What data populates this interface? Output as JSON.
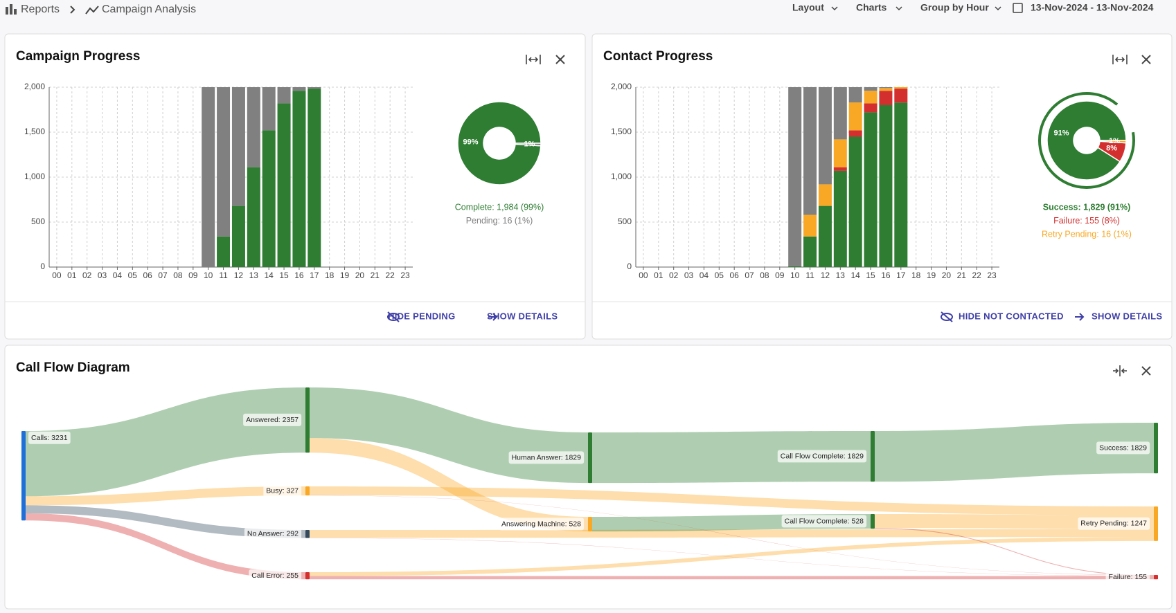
{
  "header": {
    "breadcrumb": [
      "Reports",
      "Campaign Analysis"
    ],
    "toolbar": [
      "Layout",
      "Charts",
      "Group by Hour",
      "13-Nov-2024 - 13-Nov-2024"
    ]
  },
  "chart_data": [
    {
      "type": "bar",
      "stacked": true,
      "title": "Campaign Progress",
      "categories": [
        "00",
        "01",
        "02",
        "03",
        "04",
        "05",
        "06",
        "07",
        "08",
        "09",
        "10",
        "11",
        "12",
        "13",
        "14",
        "15",
        "16",
        "17",
        "18",
        "19",
        "20",
        "21",
        "22",
        "23"
      ],
      "series": [
        {
          "color": "#2e7d32",
          "values": [
            null,
            null,
            null,
            null,
            null,
            null,
            null,
            null,
            null,
            null,
            0,
            340,
            680,
            1110,
            1520,
            1820,
            1960,
            1984,
            null,
            null,
            null,
            null,
            null,
            null
          ]
        },
        {
          "color": "#808080",
          "values": [
            null,
            null,
            null,
            null,
            null,
            null,
            null,
            null,
            null,
            null,
            2000,
            1660,
            1320,
            890,
            480,
            180,
            40,
            16,
            null,
            null,
            null,
            null,
            null,
            null
          ]
        }
      ],
      "ylim": [
        0,
        2000
      ],
      "yticks": [
        0,
        500,
        {
          "value": 1000,
          "label": "1,000"
        },
        {
          "value": 1500,
          "label": "1,500"
        },
        {
          "value": 2000,
          "label": "2,000"
        }
      ],
      "grid": true,
      "donut": {
        "type": "pie",
        "values": [
          99,
          1
        ],
        "value_labels": [
          "99%",
          "1%"
        ],
        "colors": [
          "#2e7d32",
          "#808080"
        ],
        "legend": [
          "Complete: 1,984 (99%)",
          "Pending: 16 (1%)"
        ]
      },
      "buttons": [
        "HIDE PENDING",
        "SHOW DETAILS"
      ]
    },
    {
      "type": "bar",
      "stacked": true,
      "title": "Contact Progress",
      "categories": [
        "00",
        "01",
        "02",
        "03",
        "04",
        "05",
        "06",
        "07",
        "08",
        "09",
        "10",
        "11",
        "12",
        "13",
        "14",
        "15",
        "16",
        "17",
        "18",
        "19",
        "20",
        "21",
        "22",
        "23"
      ],
      "series": [
        {
          "color": "#2e7d32",
          "values": [
            null,
            null,
            null,
            null,
            null,
            null,
            null,
            null,
            null,
            null,
            10,
            340,
            680,
            1070,
            1450,
            1720,
            1800,
            1829,
            null,
            null,
            null,
            null,
            null,
            null
          ]
        },
        {
          "color": "#d32f2f",
          "values": [
            null,
            null,
            null,
            null,
            null,
            null,
            null,
            null,
            null,
            null,
            0,
            0,
            0,
            40,
            70,
            100,
            160,
            155,
            null,
            null,
            null,
            null,
            null,
            null
          ]
        },
        {
          "color": "#f9a825",
          "values": [
            null,
            null,
            null,
            null,
            null,
            null,
            null,
            null,
            null,
            null,
            0,
            240,
            240,
            310,
            310,
            140,
            30,
            16,
            null,
            null,
            null,
            null,
            null,
            null
          ]
        },
        {
          "color": "#808080",
          "values": [
            null,
            null,
            null,
            null,
            null,
            null,
            null,
            null,
            null,
            null,
            1990,
            1420,
            1080,
            580,
            170,
            40,
            10,
            0,
            null,
            null,
            null,
            null,
            null,
            null
          ]
        }
      ],
      "ylim": [
        0,
        2000
      ],
      "yticks": [
        0,
        500,
        {
          "value": 1000,
          "label": "1,000"
        },
        {
          "value": 1500,
          "label": "1,500"
        },
        {
          "value": 2000,
          "label": "2,000"
        }
      ],
      "grid": true,
      "donut": {
        "type": "pie",
        "values": [
          91,
          8,
          1
        ],
        "value_labels": [
          "91%",
          "8%",
          "1%"
        ],
        "colors": [
          "#2e7d32",
          "#d32f2f",
          "#f9a825"
        ],
        "legend": [
          "Success: 1,829 (91%)",
          "Failure: 155 (8%)",
          "Retry Pending: 16 (1%)"
        ]
      },
      "buttons": [
        "HIDE NOT CONTACTED",
        "SHOW DETAILS"
      ]
    },
    {
      "type": "sankey",
      "title": "Call Flow Diagram",
      "nodes": [
        {
          "label": "Calls: 3231",
          "color": "#1e6fd9"
        },
        {
          "label": "Answered: 2357",
          "color": "#2e7d32"
        },
        {
          "label": "Busy: 327",
          "color": "#f9a825"
        },
        {
          "label": "No Answer: 292",
          "color": "#34495e"
        },
        {
          "label": "Call Error: 255",
          "color": "#d32f2f"
        },
        {
          "label": "Human Answer: 1829",
          "color": "#2e7d32"
        },
        {
          "label": "Answering Machine: 528",
          "color": "#f9a825"
        },
        {
          "label": "Call Flow Complete: 1829",
          "color": "#2e7d32"
        },
        {
          "label": "Call Flow Complete: 528",
          "color": "#2e7d32"
        },
        {
          "label": "Success: 1829",
          "color": "#2e7d32"
        },
        {
          "label": "Retry Pending: 1247",
          "color": "#f9a825"
        },
        {
          "label": "Failure: 155",
          "color": "#d32f2f"
        }
      ],
      "links": [
        {
          "source": 0,
          "target": 1,
          "value": 2357
        },
        {
          "source": 0,
          "target": 2,
          "value": 327
        },
        {
          "source": 0,
          "target": 3,
          "value": 292
        },
        {
          "source": 0,
          "target": 4,
          "value": 255
        },
        {
          "source": 1,
          "target": 5,
          "value": 1829
        },
        {
          "source": 1,
          "target": 6,
          "value": 528
        },
        {
          "source": 5,
          "target": 7,
          "value": 1829
        },
        {
          "source": 6,
          "target": 8,
          "value": 528
        },
        {
          "source": 7,
          "target": 9,
          "value": 1829
        },
        {
          "source": 8,
          "target": 10,
          "value": 500
        },
        {
          "source": 8,
          "target": 11,
          "value": 28
        },
        {
          "source": 2,
          "target": 10,
          "value": 320
        },
        {
          "source": 2,
          "target": 11,
          "value": 7
        },
        {
          "source": 3,
          "target": 10,
          "value": 285
        },
        {
          "source": 3,
          "target": 11,
          "value": 7
        },
        {
          "source": 4,
          "target": 10,
          "value": 142
        },
        {
          "source": 4,
          "target": 11,
          "value": 113
        }
      ]
    }
  ]
}
